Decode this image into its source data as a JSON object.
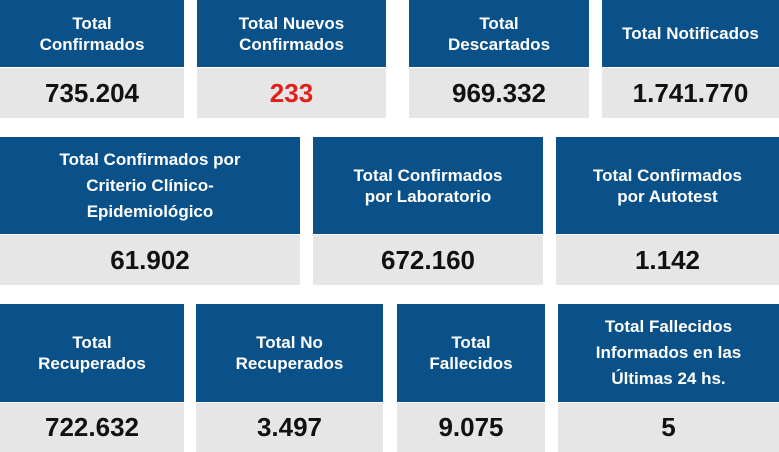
{
  "row1": [
    {
      "title": "Total\nConfirmados",
      "value": "735.204"
    },
    {
      "title": "Total Nuevos\nConfirmados",
      "value": "233"
    },
    {
      "title": "Total\nDescartados",
      "value": "969.332"
    },
    {
      "title": "Total Notificados",
      "value": "1.741.770"
    }
  ],
  "row2": [
    {
      "title": "Total Confirmados por\nCriterio Clínico-\nEpidemiológico",
      "value": "61.902"
    },
    {
      "title": "Total Confirmados\npor Laboratorio",
      "value": "672.160"
    },
    {
      "title": "Total Confirmados\npor Autotest",
      "value": "1.142"
    }
  ],
  "row3": [
    {
      "title": "Total\nRecuperados",
      "value": "722.632"
    },
    {
      "title": "Total No\nRecuperados",
      "value": "3.497"
    },
    {
      "title": "Total\nFallecidos",
      "value": "9.075"
    },
    {
      "title": "Total Fallecidos\nInformados en las\nÚltimas 24 hs.",
      "value": "5"
    }
  ],
  "colors": {
    "header": "#0b5189",
    "value_bg": "#e6e6e6",
    "highlight": "#e0201b"
  }
}
